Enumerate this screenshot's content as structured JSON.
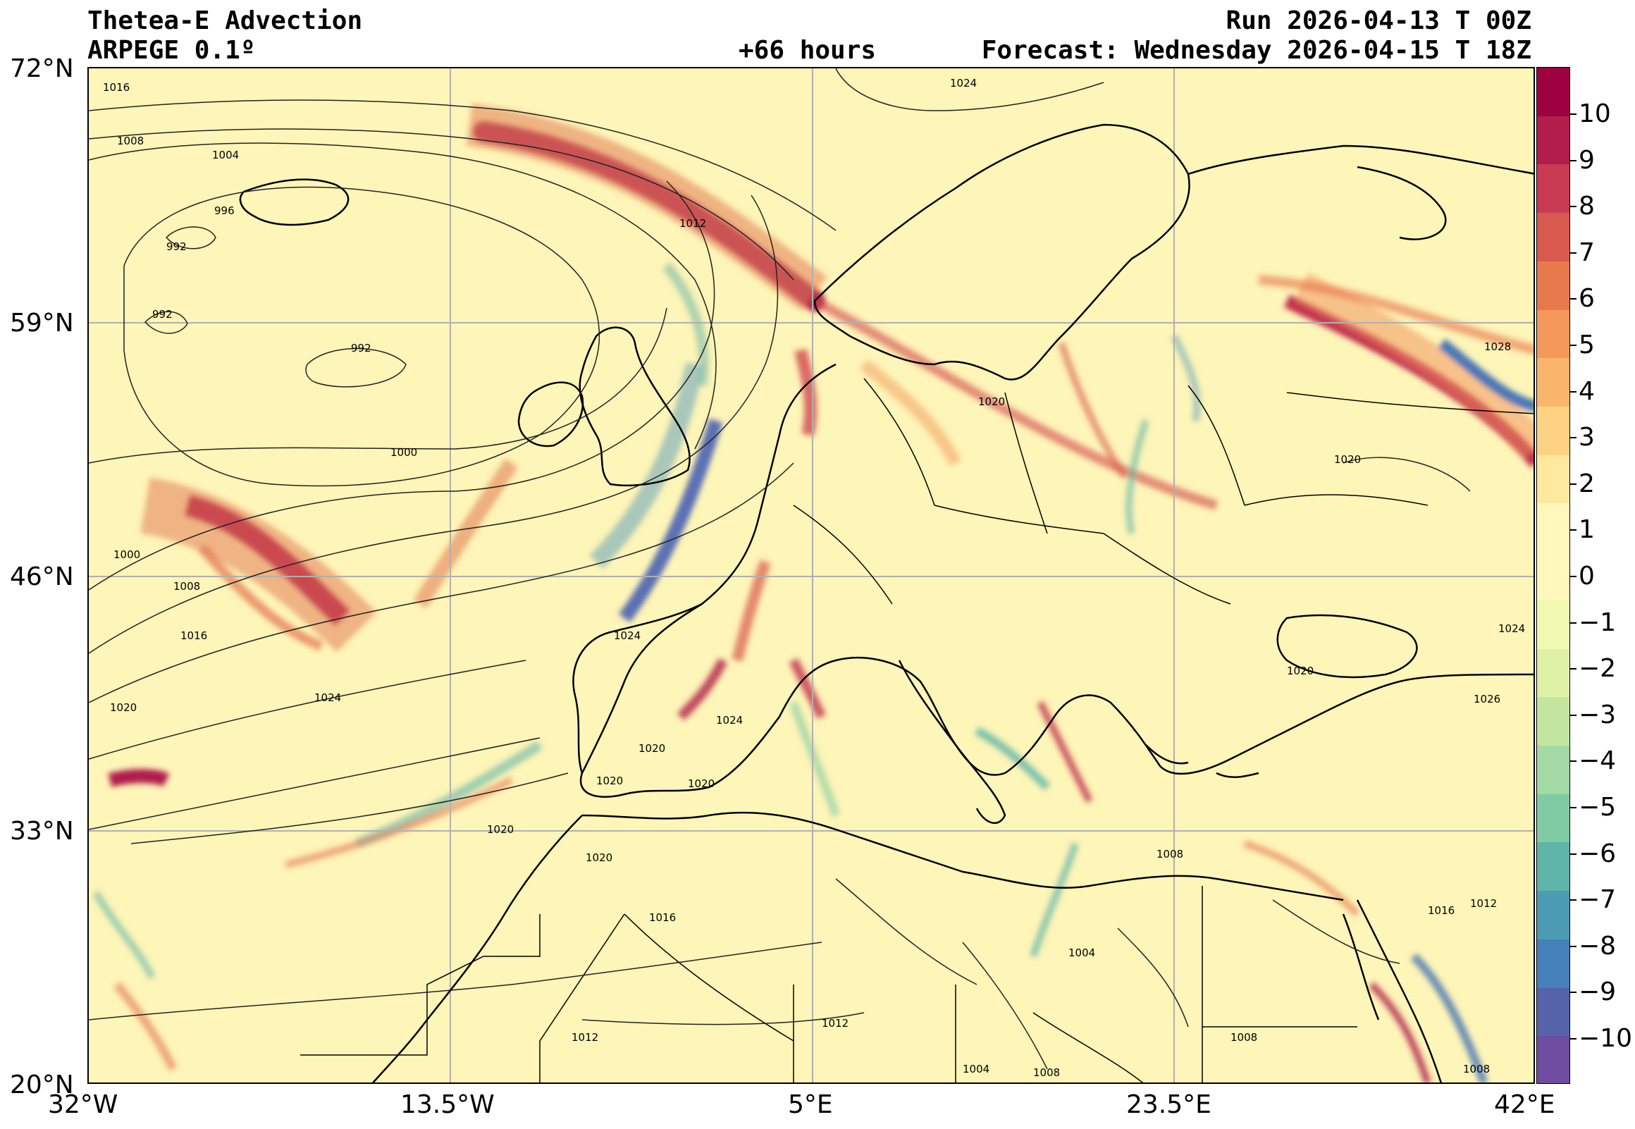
{
  "header": {
    "title_left_1": "Thetea-E Advection",
    "title_left_2": "ARPEGE 0.1º",
    "run": "Run 2026-04-13 T 00Z",
    "lead": "+66 hours",
    "forecast": "Forecast: Wednesday 2026-04-15 T 18Z"
  },
  "map": {
    "lon_ticks": [
      "32°W",
      "13.5°W",
      "5°E",
      "23.5°E",
      "42°E"
    ],
    "lat_ticks": [
      "72°N",
      "59°N",
      "46°N",
      "33°N",
      "20°N"
    ],
    "isobar_labels": [
      "1016",
      "1008",
      "1004",
      "996",
      "992",
      "992",
      "992",
      "1000",
      "1000",
      "1008",
      "1016",
      "1020",
      "1024",
      "1024",
      "1012",
      "1024",
      "1020",
      "1024",
      "1020",
      "1020",
      "1020",
      "1020",
      "1020",
      "1020",
      "1026",
      "1016",
      "1012",
      "1016",
      "1008",
      "1004",
      "1012",
      "1004",
      "1008",
      "1008",
      "1008",
      "1012",
      "1028",
      "1024",
      "1020"
    ]
  },
  "colorbar": {
    "ticks": [
      "10",
      "9",
      "8",
      "7",
      "6",
      "5",
      "4",
      "3",
      "2",
      "1",
      "0",
      "−1",
      "−2",
      "−3",
      "−4",
      "−5",
      "−6",
      "−7",
      "−8",
      "−9",
      "−10"
    ],
    "colors": [
      "#9e0142",
      "#b21d4c",
      "#c83b52",
      "#d85a4f",
      "#e8794c",
      "#f4985b",
      "#f9b56c",
      "#fdd383",
      "#fee99e",
      "#fff7bb",
      "#fff7bb",
      "#f2f9b1",
      "#dff1a4",
      "#c2e6a0",
      "#a3d9a4",
      "#80cba4",
      "#5fb5aa",
      "#4b9cb3",
      "#4580b9",
      "#5563ab",
      "#6e4c9f"
    ]
  }
}
